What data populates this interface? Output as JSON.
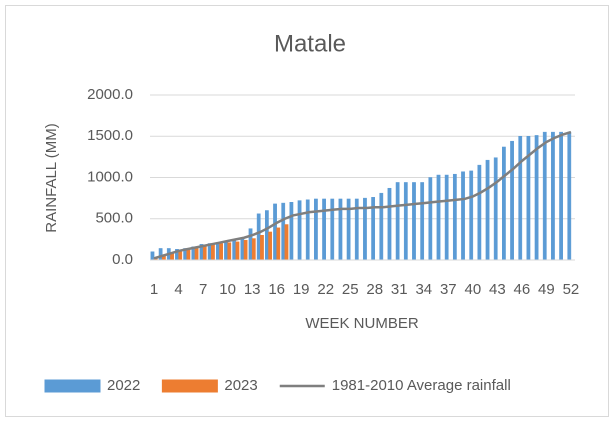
{
  "chart_data": {
    "type": "bar",
    "title": "Matale",
    "y_label": "RAINFALL (MM)",
    "x_label": "WEEK NUMBER",
    "categories": [
      "1",
      null,
      null,
      "4",
      null,
      null,
      "7",
      null,
      null,
      "10",
      null,
      null,
      "13",
      null,
      null,
      "16",
      null,
      null,
      "19",
      null,
      null,
      "22",
      null,
      null,
      "25",
      null,
      null,
      "28",
      null,
      null,
      "31",
      null,
      null,
      "34",
      null,
      null,
      "37",
      null,
      null,
      "40",
      null,
      null,
      "43",
      null,
      null,
      "46",
      null,
      null,
      "49",
      null,
      null,
      "52"
    ],
    "series": [
      {
        "name": "2022",
        "type": "bar",
        "color": "#5b9bd5",
        "values": [
          100,
          140,
          140,
          130,
          140,
          160,
          190,
          200,
          210,
          220,
          240,
          260,
          380,
          560,
          600,
          680,
          690,
          700,
          720,
          730,
          740,
          740,
          740,
          740,
          740,
          740,
          750,
          760,
          810,
          870,
          940,
          940,
          940,
          940,
          1000,
          1030,
          1030,
          1040,
          1070,
          1080,
          1150,
          1210,
          1240,
          1370,
          1440,
          1500,
          1500,
          1510,
          1550,
          1550,
          1550,
          1550
        ]
      },
      {
        "name": "2023",
        "type": "bar",
        "color": "#ed7d31",
        "values": [
          30,
          60,
          90,
          110,
          130,
          160,
          180,
          190,
          200,
          210,
          220,
          240,
          260,
          300,
          340,
          390,
          430,
          null,
          null,
          null,
          null,
          null,
          null,
          null,
          null,
          null,
          null,
          null,
          null,
          null,
          null,
          null,
          null,
          null,
          null,
          null,
          null,
          null,
          null,
          null,
          null,
          null,
          null,
          null,
          null,
          null,
          null,
          null,
          null,
          null,
          null,
          null
        ]
      },
      {
        "name": "1981-2010 Average rainfall",
        "type": "line",
        "color": "#7f7f7f",
        "values": [
          20,
          50,
          80,
          110,
          130,
          150,
          170,
          190,
          210,
          230,
          250,
          270,
          300,
          340,
          390,
          450,
          500,
          540,
          560,
          580,
          590,
          600,
          610,
          620,
          620,
          630,
          630,
          640,
          640,
          650,
          660,
          670,
          680,
          690,
          700,
          710,
          720,
          730,
          740,
          770,
          820,
          880,
          950,
          1030,
          1110,
          1200,
          1280,
          1360,
          1430,
          1480,
          1520,
          1550
        ]
      }
    ],
    "ylim": [
      0,
      2000
    ],
    "yticks": [
      {
        "value": 0,
        "label": "0.0"
      },
      {
        "value": 500,
        "label": "500.0"
      },
      {
        "value": 1000,
        "label": "1000.0"
      },
      {
        "value": 1500,
        "label": "1500.0"
      },
      {
        "value": 2000,
        "label": "2000.0"
      }
    ],
    "grid": true,
    "legend": "bottom"
  }
}
